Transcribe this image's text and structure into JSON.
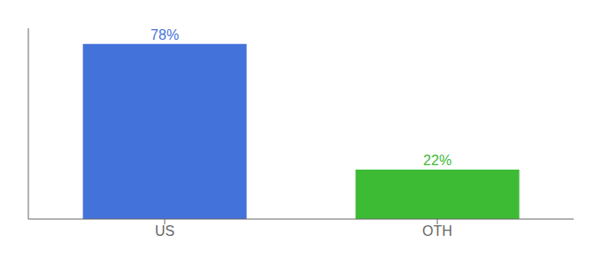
{
  "chart_data": {
    "type": "bar",
    "categories": [
      "US",
      "OTH"
    ],
    "values": [
      78,
      22
    ],
    "value_labels": [
      "78%",
      "22%"
    ],
    "colors": [
      "#4472db",
      "#3dbb35"
    ],
    "ylim": [
      0,
      85
    ],
    "data_labels": true,
    "tick_labels": "x"
  }
}
